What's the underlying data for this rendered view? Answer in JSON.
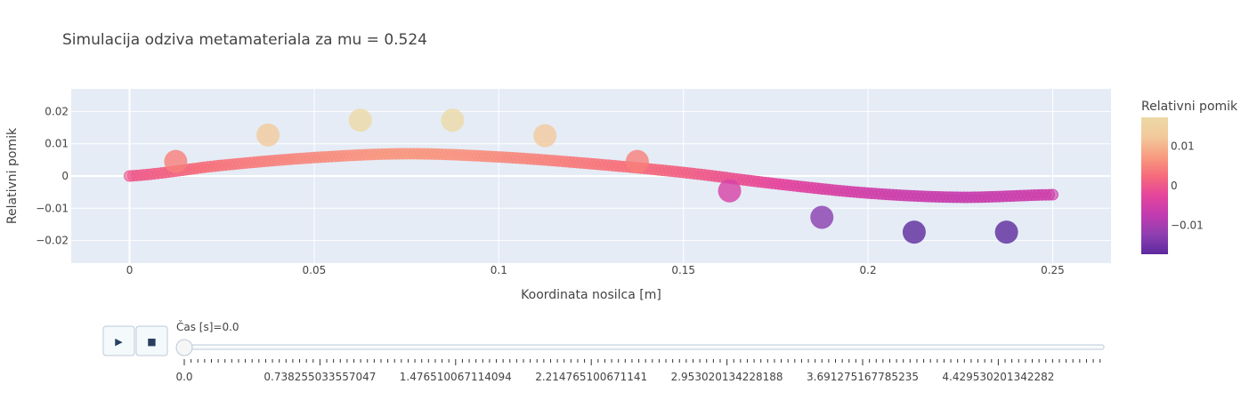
{
  "chart_data": {
    "type": "scatter",
    "title": "Simulacija odziva metamateriala za mu = 0.524",
    "xlabel": "Koordinata nosilca [m]",
    "ylabel": "Relativni pomik",
    "xlim": [
      -0.0158,
      0.2658
    ],
    "ylim": [
      -0.027,
      0.027
    ],
    "x_ticks": [
      0,
      0.05,
      0.1,
      0.15,
      0.2,
      0.25
    ],
    "x_tick_labels": [
      "0",
      "0.05",
      "0.1",
      "0.15",
      "0.2",
      "0.25"
    ],
    "y_ticks": [
      -0.02,
      -0.01,
      0,
      0.01,
      0.02
    ],
    "y_tick_labels": [
      "−0.02",
      "−0.01",
      "0",
      "0.01",
      "0.02"
    ],
    "grid": true,
    "series": [
      {
        "kind": "beam",
        "x_range": [
          0,
          0.25
        ],
        "profile_points": [
          [
            0,
            0
          ],
          [
            0.025,
            0.0033
          ],
          [
            0.05,
            0.0057
          ],
          [
            0.075,
            0.0069
          ],
          [
            0.1,
            0.0059
          ],
          [
            0.125,
            0.0038
          ],
          [
            0.15,
            0.0011
          ],
          [
            0.175,
            -0.0024
          ],
          [
            0.2,
            -0.0053
          ],
          [
            0.225,
            -0.0066
          ],
          [
            0.25,
            -0.0058
          ]
        ]
      },
      {
        "kind": "resonators",
        "x": [
          0.0125,
          0.0375,
          0.0625,
          0.0875,
          0.1125,
          0.1375,
          0.1625,
          0.1875,
          0.2125,
          0.2375
        ],
        "y": [
          0.0045,
          0.0127,
          0.0173,
          0.0173,
          0.0125,
          0.0045,
          -0.0046,
          -0.0128,
          -0.0174,
          -0.0174
        ]
      }
    ],
    "colorbar": {
      "title": "Relativni pomik",
      "range": [
        -0.0174,
        0.0174
      ],
      "ticks": [
        0.01,
        0,
        -0.01
      ],
      "tick_labels": [
        "0.01",
        "0",
        "−0.01"
      ],
      "colorscale": [
        "#5d2a9e",
        "#8e3fb0",
        "#c13bb0",
        "#e5459c",
        "#f66b7a",
        "#f89c80",
        "#f2c99c",
        "#ecd9a5"
      ]
    }
  },
  "animation_controls": {
    "play_icon": "▶",
    "stop_icon": "■",
    "current_label": "Čas [s]=0.0",
    "current_value": 0.0,
    "tick_labels": [
      "0.0",
      "0.738255033557047",
      "1.476510067114094",
      "2.214765100671141",
      "2.953020134228188",
      "3.691275167785235",
      "4.429530201342282"
    ]
  },
  "colors": {
    "plot_background": "#e5ecf6",
    "grid": "#ffffff",
    "text": "#444444"
  }
}
